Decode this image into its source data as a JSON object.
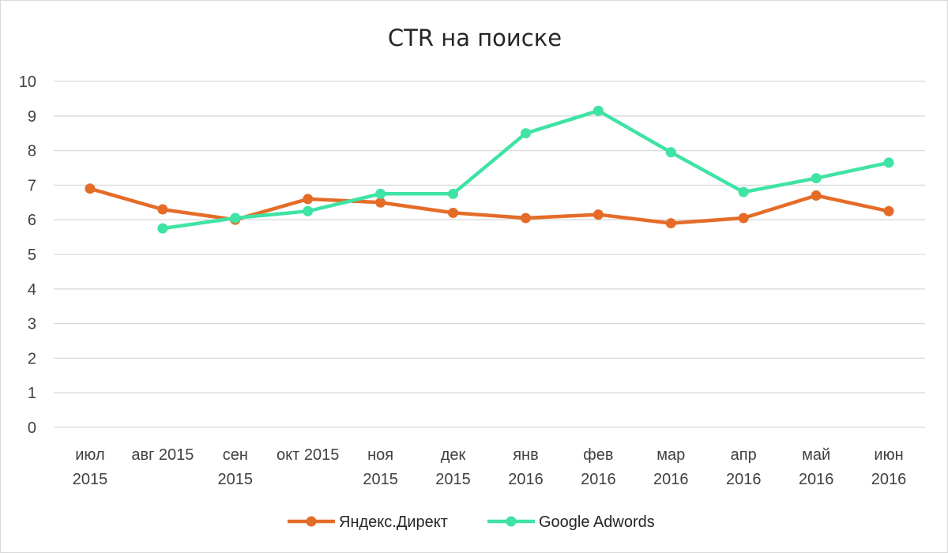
{
  "chart_data": {
    "type": "line",
    "title": "CTR на поиске",
    "categories": [
      [
        "июл",
        "2015"
      ],
      [
        "авг 2015"
      ],
      [
        "сен",
        "2015"
      ],
      [
        "окт 2015"
      ],
      [
        "ноя",
        "2015"
      ],
      [
        "дек",
        "2015"
      ],
      [
        "янв",
        "2016"
      ],
      [
        "фев",
        "2016"
      ],
      [
        "мар",
        "2016"
      ],
      [
        "апр",
        "2016"
      ],
      [
        "май",
        "2016"
      ],
      [
        "июн",
        "2016"
      ]
    ],
    "ylim": [
      0,
      10
    ],
    "yticks": [
      "0",
      "1",
      "2",
      "3",
      "4",
      "5",
      "6",
      "7",
      "8",
      "9",
      "10"
    ],
    "grid": true,
    "legend_position": "bottom",
    "series": [
      {
        "name": "Яндекс.Директ",
        "color": "#e46c28",
        "values": [
          6.9,
          6.3,
          6.0,
          6.6,
          6.5,
          6.2,
          6.05,
          6.15,
          5.9,
          6.05,
          6.7,
          6.25
        ]
      },
      {
        "name": "Google Adwords",
        "color": "#3fe3a4",
        "values": [
          null,
          5.75,
          6.05,
          6.25,
          6.75,
          6.75,
          8.5,
          9.15,
          7.95,
          6.8,
          7.2,
          7.65
        ]
      }
    ]
  }
}
